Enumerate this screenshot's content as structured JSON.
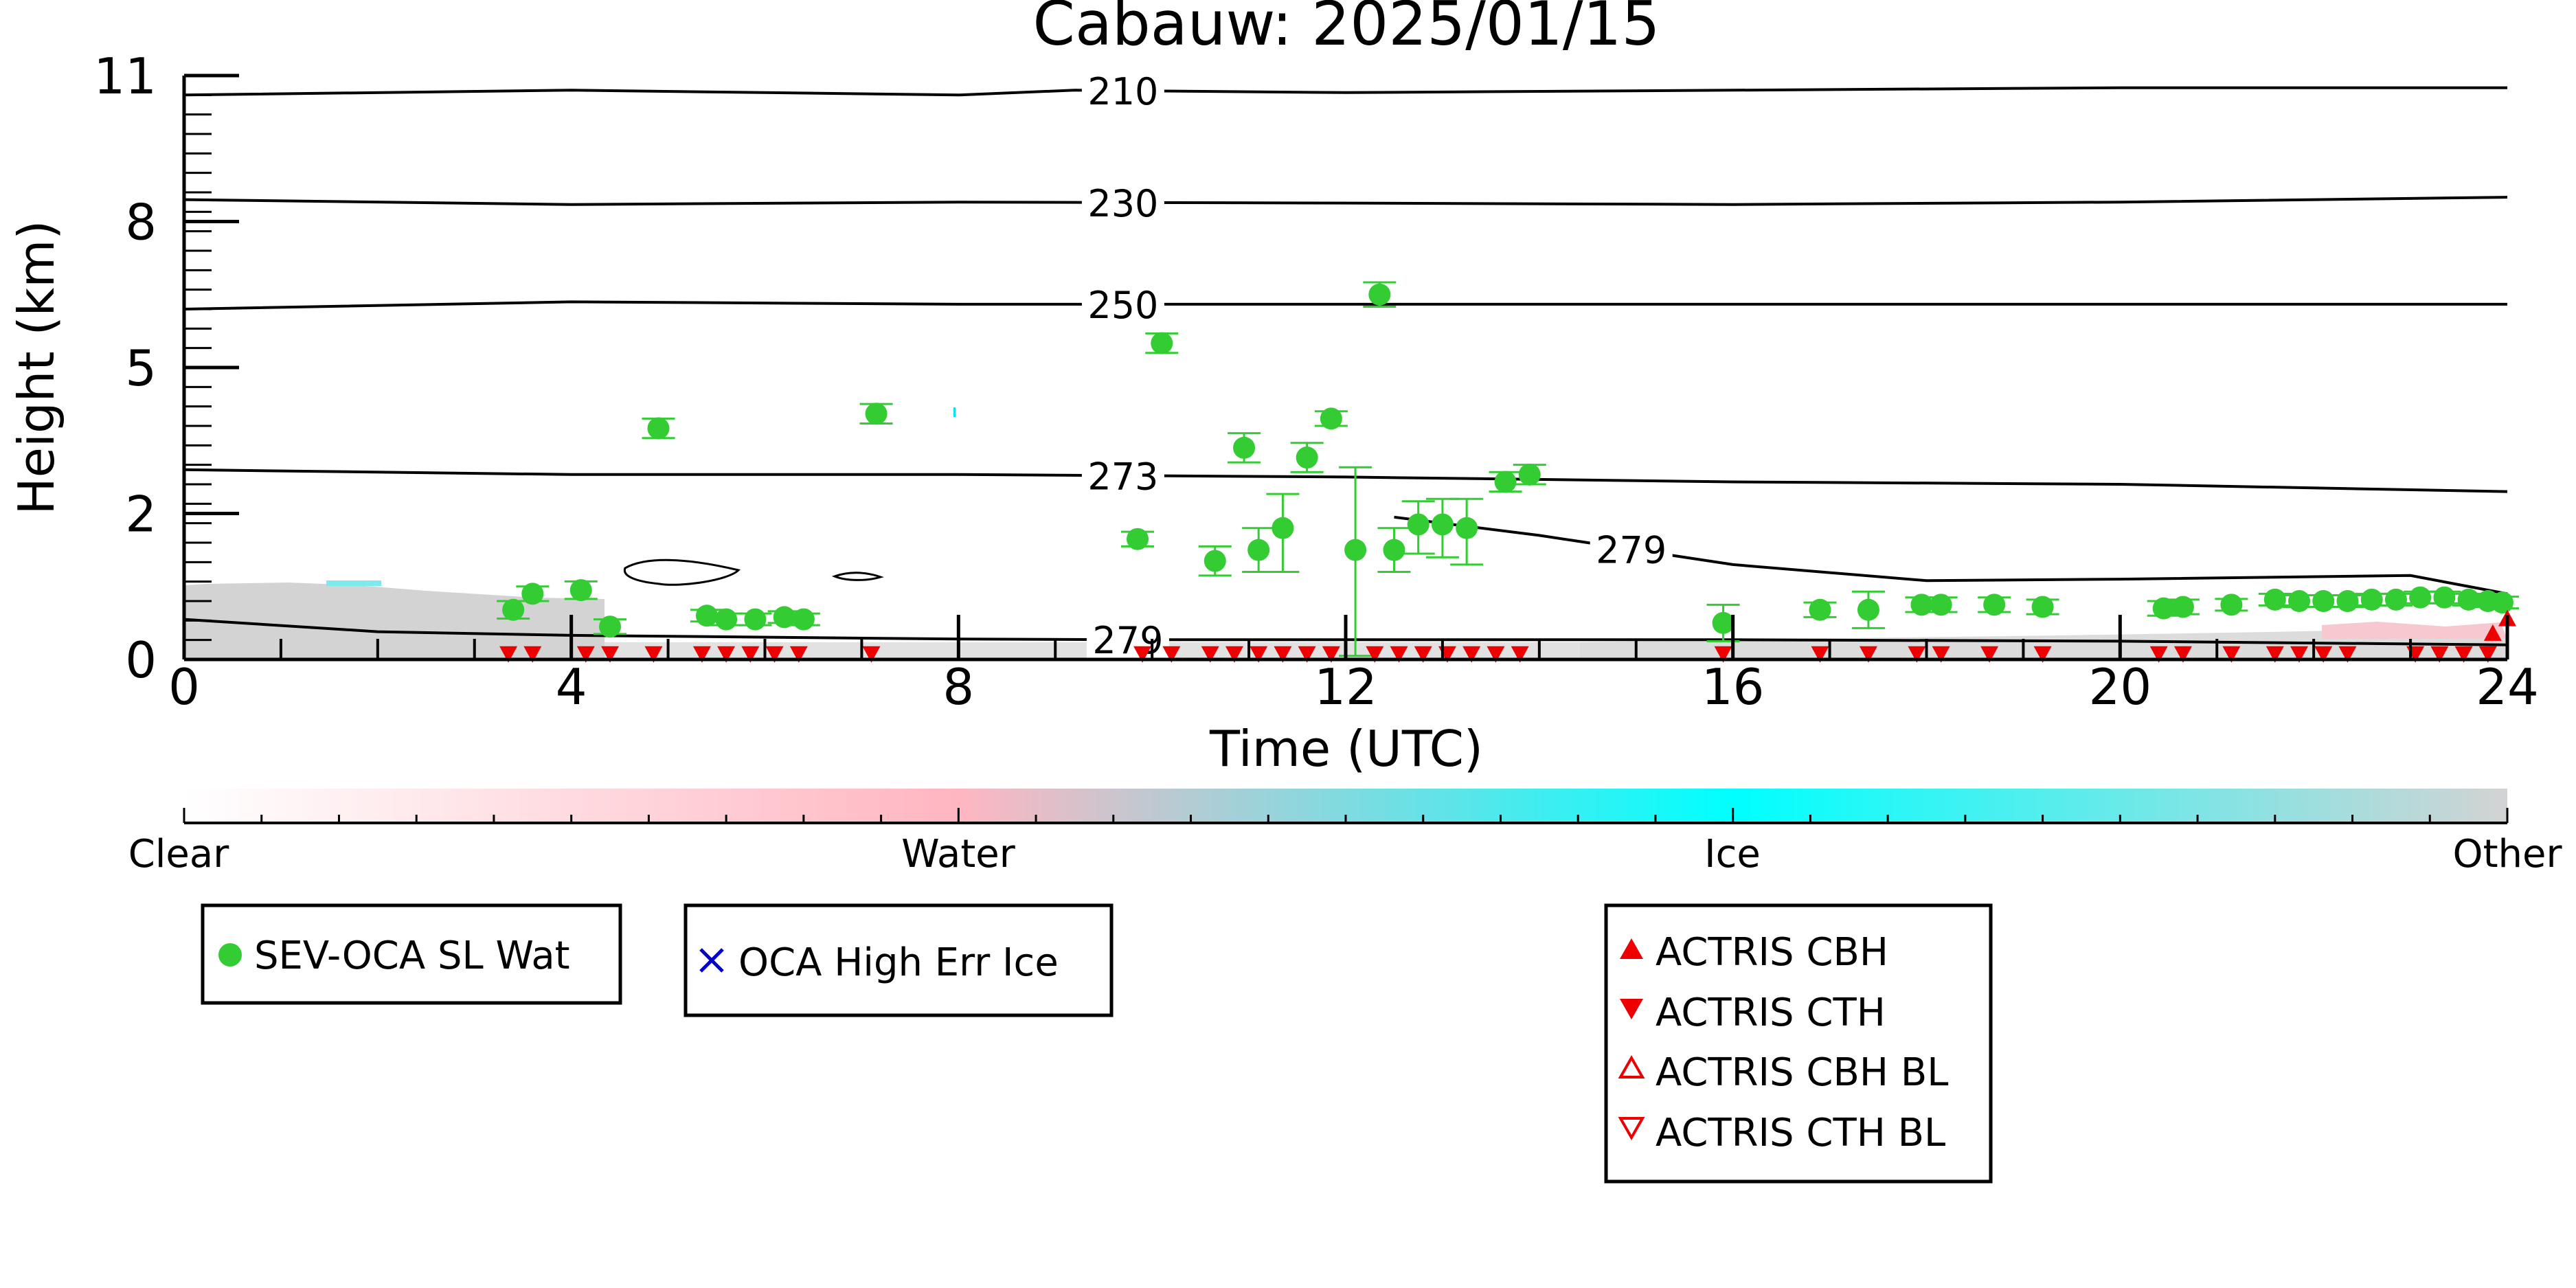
{
  "chart_data": {
    "type": "scatter",
    "title": "Cabauw: 2025/01/15",
    "xlabel": "Time (UTC)",
    "ylabel": "Height (km)",
    "xlim": [
      0,
      24
    ],
    "ylim": [
      0,
      11
    ],
    "x_ticks": [
      0,
      4,
      8,
      12,
      16,
      20,
      24
    ],
    "x_tick_labels": [
      "0",
      "4",
      "8",
      "12",
      "16",
      "20",
      "24"
    ],
    "y_ticks": [
      0,
      2,
      5,
      8,
      11
    ],
    "y_tick_labels": [
      "0",
      "2",
      "5",
      "8",
      "11"
    ],
    "colorbar": {
      "labels": [
        "Clear",
        "Water",
        "Ice",
        "Other"
      ],
      "colors": [
        "#ffffff",
        "#ffb6c1",
        "#00ffff",
        "#d3d3d3"
      ]
    },
    "temperature_contours": [
      {
        "label": "210",
        "label_x": 9.7,
        "points": [
          [
            0,
            10.6
          ],
          [
            4,
            10.7
          ],
          [
            8,
            10.6
          ],
          [
            9.2,
            10.7
          ],
          [
            12,
            10.65
          ],
          [
            16,
            10.7
          ],
          [
            20,
            10.75
          ],
          [
            24,
            10.75
          ]
        ]
      },
      {
        "label": "230",
        "label_x": 9.7,
        "points": [
          [
            0,
            8.45
          ],
          [
            4,
            8.35
          ],
          [
            8,
            8.4
          ],
          [
            12,
            8.38
          ],
          [
            16,
            8.35
          ],
          [
            20,
            8.4
          ],
          [
            24,
            8.5
          ]
        ]
      },
      {
        "label": "250",
        "label_x": 9.7,
        "points": [
          [
            0,
            6.2
          ],
          [
            4,
            6.35
          ],
          [
            8,
            6.3
          ],
          [
            12,
            6.3
          ],
          [
            16,
            6.3
          ],
          [
            20,
            6.3
          ],
          [
            24,
            6.3
          ]
        ]
      },
      {
        "label": "273",
        "label_x": 9.7,
        "points": [
          [
            0,
            2.9
          ],
          [
            4,
            2.8
          ],
          [
            8,
            2.8
          ],
          [
            12,
            2.75
          ],
          [
            16,
            2.65
          ],
          [
            20,
            2.6
          ],
          [
            24,
            2.45
          ]
        ]
      },
      {
        "label": "279",
        "label_x": 14.95,
        "points": [
          [
            12.5,
            1.95
          ],
          [
            14,
            1.7
          ],
          [
            15,
            1.5
          ],
          [
            16,
            1.3
          ],
          [
            18,
            1.08
          ],
          [
            20,
            1.1
          ],
          [
            23,
            1.15
          ],
          [
            24,
            0.9
          ]
        ]
      },
      {
        "label": "279",
        "label_x": 9.75,
        "points": [
          [
            0,
            0.55
          ],
          [
            2,
            0.38
          ],
          [
            4,
            0.33
          ],
          [
            8,
            0.28
          ],
          [
            10,
            0.27
          ],
          [
            12,
            0.27
          ],
          [
            16,
            0.27
          ],
          [
            20,
            0.25
          ],
          [
            24,
            0.2
          ]
        ]
      }
    ],
    "series": [
      {
        "name": "SEV-OCA SL Wat",
        "color": "#33cc33",
        "marker": "circle",
        "points": [
          [
            3.4,
            0.68,
            0.12
          ],
          [
            3.6,
            0.9,
            0.1
          ],
          [
            4.1,
            0.95,
            0.12
          ],
          [
            4.4,
            0.45,
            0.1
          ],
          [
            4.9,
            3.75,
            0.2
          ],
          [
            5.4,
            0.6,
            0.08
          ],
          [
            5.6,
            0.55,
            0.08
          ],
          [
            5.9,
            0.55,
            0.08
          ],
          [
            6.2,
            0.58,
            0.08
          ],
          [
            6.4,
            0.55,
            0.08
          ],
          [
            7.15,
            4.05,
            0.2
          ],
          [
            9.85,
            1.65,
            0.1
          ],
          [
            10.1,
            5.5,
            0.2
          ],
          [
            10.65,
            1.35,
            0.2
          ],
          [
            10.95,
            3.35,
            0.3
          ],
          [
            11.35,
            1.8,
            0.6
          ],
          [
            11.1,
            1.5,
            0.3
          ],
          [
            11.6,
            3.15,
            0.3
          ],
          [
            11.85,
            3.95,
            0.15
          ],
          [
            12.1,
            1.5,
            1.45
          ],
          [
            12.35,
            6.5,
            0.25
          ],
          [
            12.5,
            1.5,
            0.3
          ],
          [
            12.75,
            1.85,
            0.4
          ],
          [
            13.0,
            1.85,
            0.45
          ],
          [
            13.25,
            1.8,
            0.5
          ],
          [
            13.65,
            2.65,
            0.2
          ],
          [
            13.9,
            2.8,
            0.2
          ],
          [
            15.9,
            0.5,
            0.25
          ],
          [
            16.9,
            0.68,
            0.1
          ],
          [
            17.4,
            0.68,
            0.25
          ],
          [
            17.95,
            0.75,
            0.1
          ],
          [
            18.15,
            0.75,
            0.1
          ],
          [
            18.7,
            0.75,
            0.1
          ],
          [
            19.2,
            0.72,
            0.1
          ],
          [
            20.45,
            0.7,
            0.1
          ],
          [
            20.65,
            0.72,
            0.1
          ],
          [
            21.15,
            0.75,
            0.08
          ],
          [
            21.6,
            0.82,
            0.08
          ],
          [
            21.85,
            0.8,
            0.08
          ],
          [
            22.1,
            0.8,
            0.08
          ],
          [
            22.35,
            0.8,
            0.08
          ],
          [
            22.6,
            0.82,
            0.08
          ],
          [
            22.85,
            0.82,
            0.08
          ],
          [
            23.1,
            0.85,
            0.08
          ],
          [
            23.35,
            0.85,
            0.08
          ],
          [
            23.6,
            0.82,
            0.08
          ],
          [
            23.8,
            0.8,
            0.08
          ],
          [
            23.95,
            0.78,
            0.08
          ]
        ]
      },
      {
        "name": "OCA High Err Ice",
        "color": "#0000cc",
        "marker": "x",
        "points": []
      },
      {
        "name": "ACTRIS CBH",
        "color": "#ee0000",
        "marker": "triangle-up",
        "points": [
          [
            23.85,
            0.35
          ],
          [
            24.0,
            0.55
          ]
        ]
      },
      {
        "name": "ACTRIS CTH",
        "color": "#ee0000",
        "marker": "triangle-down",
        "points": [
          [
            3.35,
            0.05
          ],
          [
            3.6,
            0.05
          ],
          [
            4.15,
            0.05
          ],
          [
            4.4,
            0.05
          ],
          [
            4.85,
            0.05
          ],
          [
            5.35,
            0.05
          ],
          [
            5.6,
            0.05
          ],
          [
            5.85,
            0.05
          ],
          [
            6.1,
            0.05
          ],
          [
            6.35,
            0.05
          ],
          [
            7.1,
            0.05
          ],
          [
            9.9,
            0.05
          ],
          [
            10.2,
            0.05
          ],
          [
            10.6,
            0.05
          ],
          [
            10.85,
            0.05
          ],
          [
            11.1,
            0.05
          ],
          [
            11.35,
            0.05
          ],
          [
            11.6,
            0.05
          ],
          [
            11.85,
            0.05
          ],
          [
            12.3,
            0.05
          ],
          [
            12.55,
            0.05
          ],
          [
            12.8,
            0.05
          ],
          [
            13.05,
            0.05
          ],
          [
            13.3,
            0.05
          ],
          [
            13.55,
            0.05
          ],
          [
            13.8,
            0.05
          ],
          [
            15.9,
            0.05
          ],
          [
            16.9,
            0.05
          ],
          [
            17.4,
            0.05
          ],
          [
            17.9,
            0.05
          ],
          [
            18.15,
            0.05
          ],
          [
            18.65,
            0.05
          ],
          [
            19.2,
            0.05
          ],
          [
            20.4,
            0.05
          ],
          [
            20.65,
            0.05
          ],
          [
            21.15,
            0.05
          ],
          [
            21.6,
            0.05
          ],
          [
            21.85,
            0.05
          ],
          [
            22.1,
            0.05
          ],
          [
            22.35,
            0.05
          ],
          [
            23.05,
            0.05
          ],
          [
            23.3,
            0.05
          ],
          [
            23.55,
            0.05
          ],
          [
            23.8,
            0.05
          ]
        ]
      },
      {
        "name": "ACTRIS CBH BL",
        "color": "#ee0000",
        "marker": "triangle-up-open",
        "points": []
      },
      {
        "name": "ACTRIS CTH BL",
        "color": "#ee0000",
        "marker": "triangle-down-open",
        "points": []
      }
    ],
    "legends": [
      {
        "entries": [
          "SEV-OCA SL Wat"
        ]
      },
      {
        "entries": [
          "OCA High Err Ice"
        ]
      },
      {
        "entries": [
          "ACTRIS CBH",
          "ACTRIS CTH",
          "ACTRIS CBH BL",
          "ACTRIS CTH BL"
        ]
      }
    ]
  }
}
